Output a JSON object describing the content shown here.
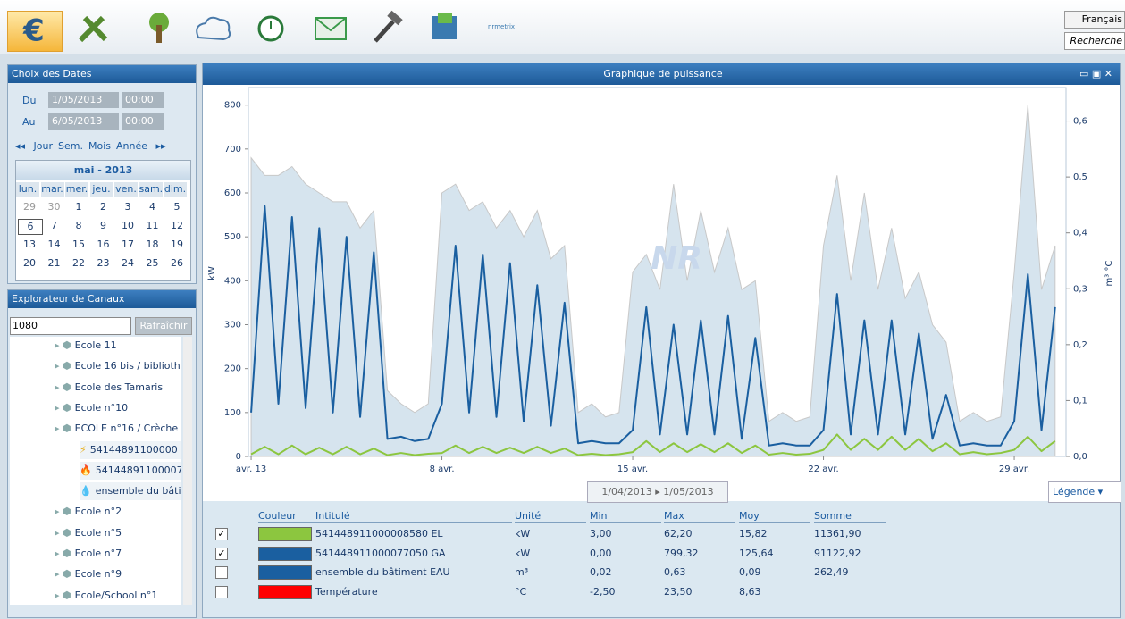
{
  "toolbar": {
    "brand": "nrmetrix",
    "language": "Français",
    "search": "Recherche"
  },
  "dates_panel": {
    "title": "Choix des Dates",
    "from_label": "Du",
    "from_date": "1/05/2013",
    "from_time": "00:00",
    "to_label": "Au",
    "to_date": "6/05/2013",
    "to_time": "00:00",
    "nav": [
      "Jour",
      "Sem.",
      "Mois",
      "Année"
    ],
    "calendar": {
      "month": "mai - 2013",
      "weekdays": [
        "lun.",
        "mar.",
        "mer.",
        "jeu.",
        "ven.",
        "sam.",
        "dim."
      ],
      "weeks": [
        [
          29,
          30,
          1,
          2,
          3,
          4,
          5
        ],
        [
          6,
          7,
          8,
          9,
          10,
          11,
          12
        ],
        [
          13,
          14,
          15,
          16,
          17,
          18,
          19
        ],
        [
          20,
          21,
          22,
          23,
          24,
          25,
          26
        ]
      ]
    }
  },
  "channels_panel": {
    "title": "Explorateur de Canaux",
    "select": "1080",
    "refresh": "Rafraîchir",
    "tree": [
      "Ecole 11",
      "Ecole 16 bis / biblioth",
      "Ecole des Tamaris",
      "Ecole n°10",
      "ECOLE n°16 / Crèche",
      "54144891100000",
      "54144891100007",
      "ensemble du bâti",
      "Ecole n°2",
      "Ecole n°5",
      "Ecole n°7",
      "Ecole n°9",
      "Ecole/School n°1"
    ]
  },
  "chart_panel": {
    "title": "Graphique de puissance",
    "range_tabs": [
      "1/04/2013",
      "1/05/2013"
    ],
    "legend_button": "Légende",
    "legend_table": {
      "headers": [
        "Couleur",
        "Intitulé",
        "Unité",
        "Min",
        "Max",
        "Moy",
        "Somme"
      ],
      "rows": [
        {
          "checked": true,
          "color": "#8cc63f",
          "name": "541448911000008580 EL",
          "unit": "kW",
          "min": "3,00",
          "max": "62,20",
          "avg": "15,82",
          "sum": "11361,90"
        },
        {
          "checked": true,
          "color": "#1a5fa0",
          "name": "541448911000077050 GA",
          "unit": "kW",
          "min": "0,00",
          "max": "799,32",
          "avg": "125,64",
          "sum": "91122,92"
        },
        {
          "checked": false,
          "color": "#1a5fa0",
          "name": "ensemble du bâtiment EAU",
          "unit": "m³",
          "min": "0,02",
          "max": "0,63",
          "avg": "0,09",
          "sum": "262,49"
        },
        {
          "checked": false,
          "color": "#ff0000",
          "name": "Température",
          "unit": "°C",
          "min": "-2,50",
          "max": "23,50",
          "avg": "8,63",
          "sum": ""
        }
      ]
    }
  },
  "chart_data": {
    "type": "line",
    "y_label": "kW",
    "y2_label": "m³ °C",
    "x": [
      1,
      1.5,
      2,
      2.5,
      3,
      3.5,
      4,
      4.5,
      5,
      5.5,
      6,
      6.5,
      7,
      7.5,
      8,
      8.5,
      9,
      9.5,
      10,
      10.5,
      11,
      11.5,
      12,
      12.5,
      13,
      13.5,
      14,
      14.5,
      15,
      15.5,
      16,
      16.5,
      17,
      17.5,
      18,
      18.5,
      19,
      19.5,
      20,
      20.5,
      21,
      21.5,
      22,
      22.5,
      23,
      23.5,
      24,
      24.5,
      25,
      25.5,
      26,
      26.5,
      27,
      27.5,
      28,
      28.5,
      29,
      29.5,
      30,
      30.5
    ],
    "xlim": [
      0.9,
      30.9
    ],
    "xticks": [
      {
        "value": 1,
        "label": "avr. 13"
      },
      {
        "value": 8,
        "label": "8 avr."
      },
      {
        "value": 15,
        "label": "15 avr."
      },
      {
        "value": 22,
        "label": "22 avr."
      },
      {
        "value": 29,
        "label": "29 avr."
      }
    ],
    "ylim": [
      0,
      840
    ],
    "yticks": [
      0,
      100,
      200,
      300,
      400,
      500,
      600,
      700,
      800
    ],
    "y2lim": [
      0,
      0.66
    ],
    "y2ticks": [
      {
        "value": 0,
        "label": "0,0"
      },
      {
        "value": 0.1,
        "label": "0,1"
      },
      {
        "value": 0.2,
        "label": "0,2"
      },
      {
        "value": 0.3,
        "label": "0,3"
      },
      {
        "value": 0.4,
        "label": "0,4"
      },
      {
        "value": 0.5,
        "label": "0,5"
      },
      {
        "value": 0.6,
        "label": "0,6"
      }
    ],
    "grid": false,
    "band_color": "#d6e4ee",
    "band_values": [
      680,
      640,
      640,
      660,
      620,
      600,
      580,
      580,
      520,
      560,
      150,
      120,
      100,
      120,
      600,
      620,
      560,
      580,
      520,
      560,
      500,
      560,
      450,
      480,
      100,
      120,
      90,
      100,
      420,
      460,
      380,
      620,
      400,
      560,
      420,
      520,
      380,
      400,
      80,
      100,
      80,
      90,
      480,
      640,
      400,
      600,
      380,
      520,
      360,
      420,
      300,
      260,
      80,
      100,
      80,
      90,
      420,
      800,
      380,
      480
    ],
    "series": [
      {
        "color": "#1a5fa0",
        "values": [
          100,
          570,
          120,
          545,
          110,
          520,
          100,
          500,
          90,
          465,
          40,
          45,
          35,
          40,
          120,
          480,
          100,
          460,
          90,
          440,
          80,
          390,
          70,
          350,
          30,
          35,
          30,
          30,
          60,
          340,
          50,
          300,
          50,
          310,
          50,
          320,
          40,
          270,
          25,
          30,
          25,
          25,
          60,
          370,
          50,
          310,
          50,
          310,
          50,
          280,
          40,
          140,
          25,
          30,
          25,
          25,
          80,
          415,
          60,
          340
        ]
      },
      {
        "color": "#8cc63f",
        "values": [
          5,
          22,
          5,
          25,
          5,
          20,
          5,
          22,
          5,
          18,
          3,
          8,
          3,
          6,
          8,
          25,
          8,
          22,
          8,
          20,
          8,
          22,
          8,
          18,
          3,
          6,
          3,
          5,
          10,
          35,
          10,
          30,
          10,
          28,
          10,
          30,
          8,
          25,
          4,
          8,
          4,
          6,
          15,
          50,
          15,
          40,
          15,
          45,
          15,
          40,
          12,
          30,
          5,
          10,
          5,
          8,
          15,
          45,
          12,
          35
        ]
      }
    ]
  }
}
